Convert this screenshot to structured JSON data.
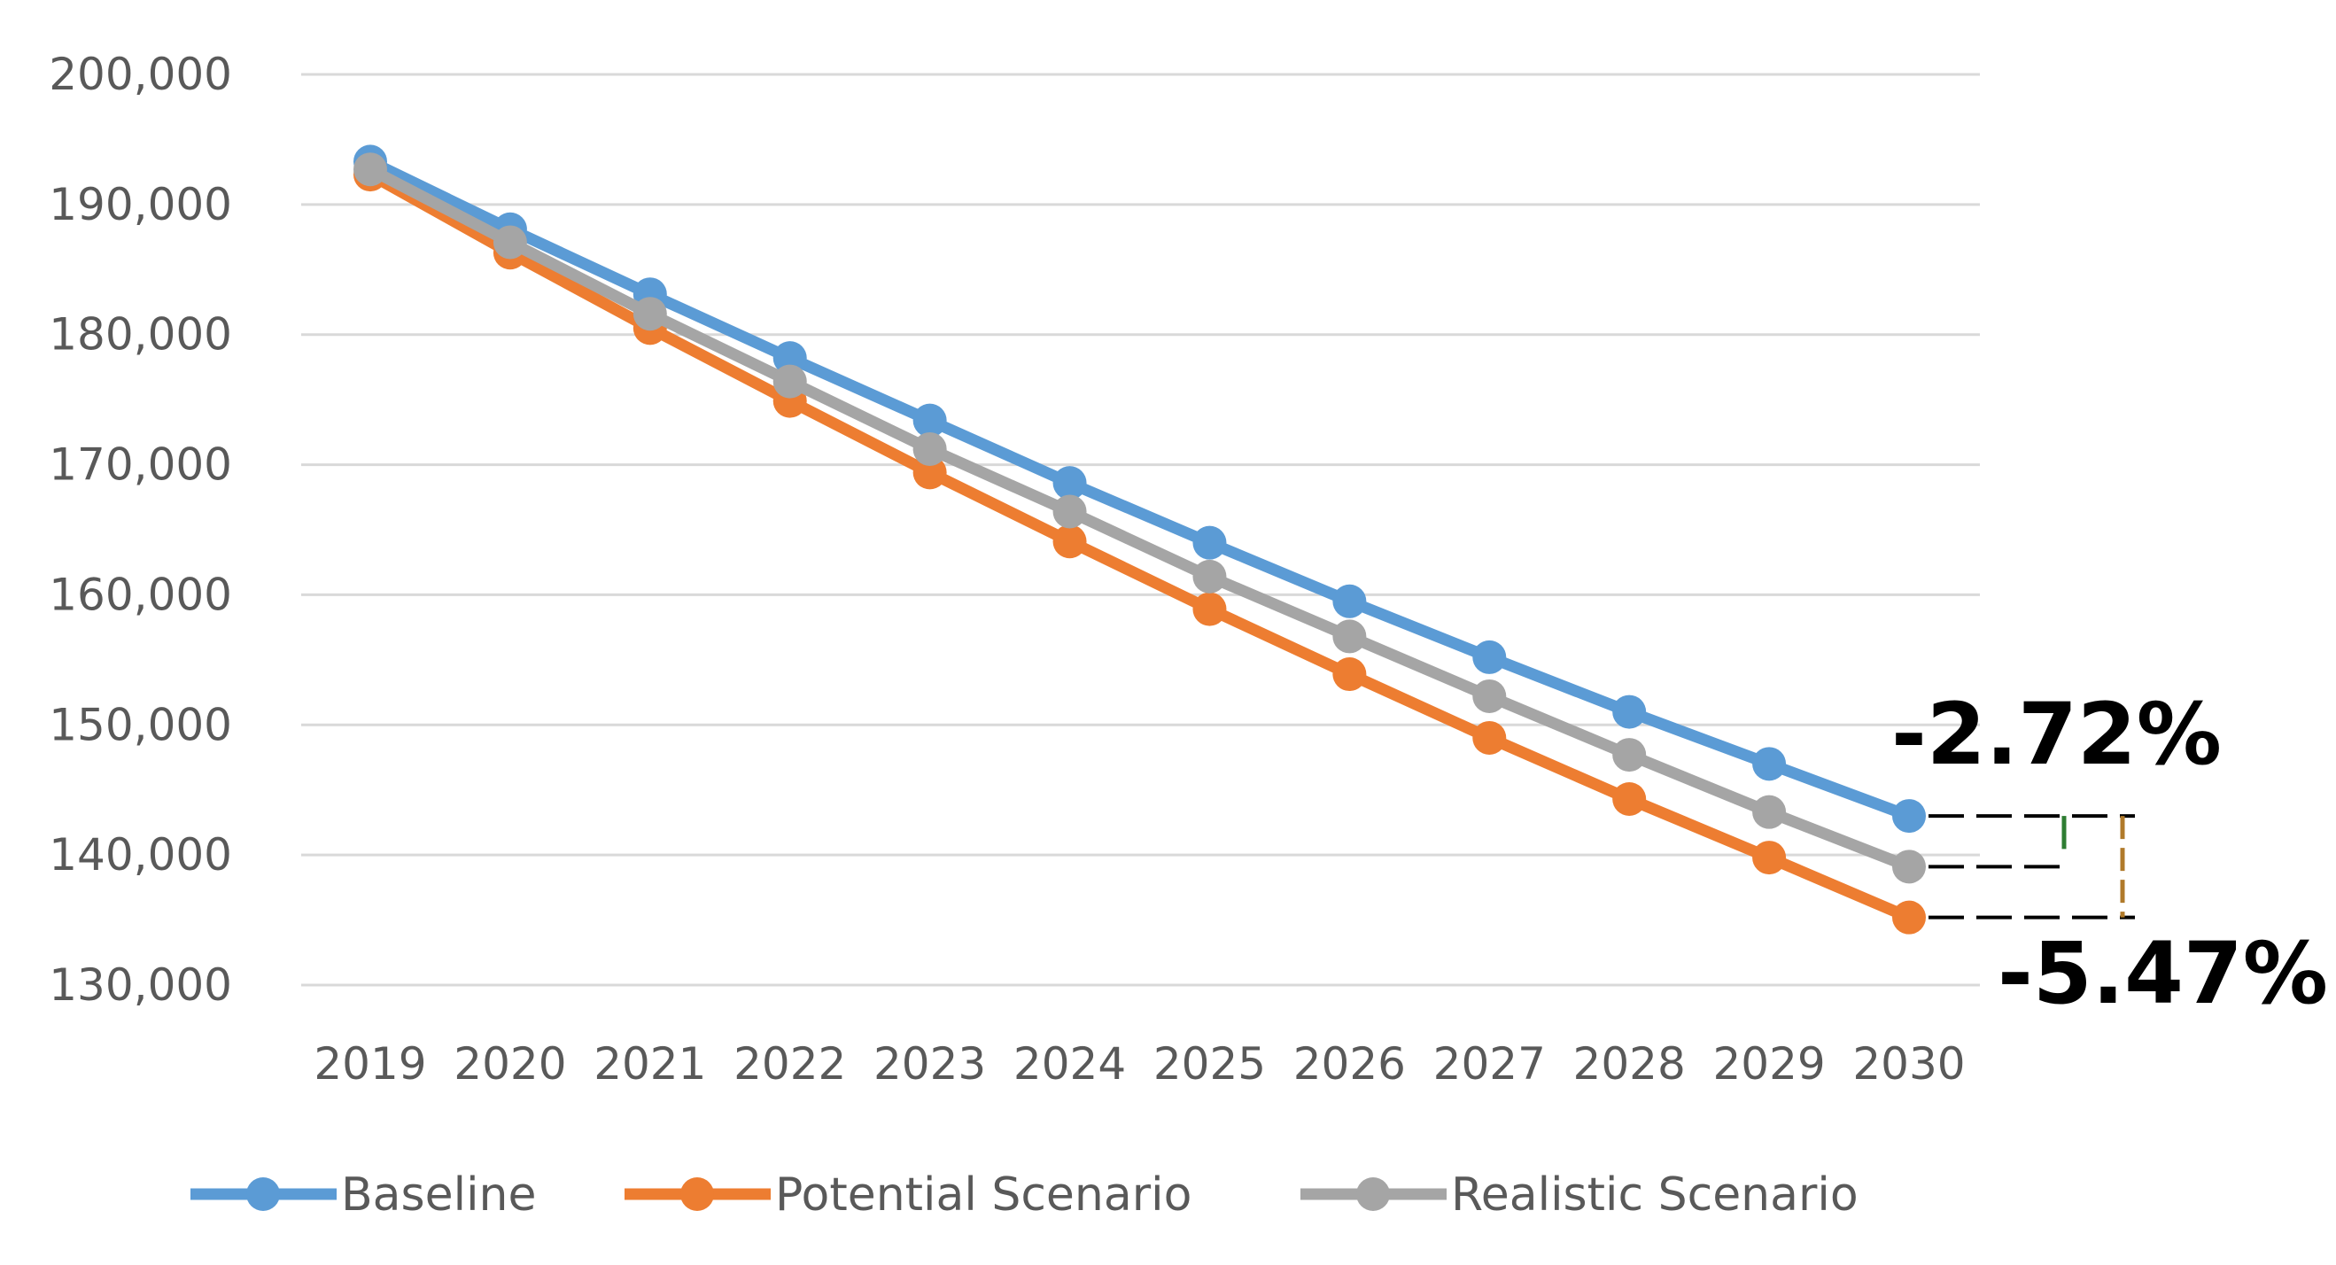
{
  "chart_data": {
    "type": "line",
    "title": "",
    "xlabel": "",
    "ylabel": "",
    "ylim": [
      130000,
      200000
    ],
    "y_ticks": [
      130000,
      140000,
      150000,
      160000,
      170000,
      180000,
      190000,
      200000
    ],
    "y_tick_labels": [
      "130,000",
      "140,000",
      "150,000",
      "160,000",
      "170,000",
      "180,000",
      "190,000",
      "200,000"
    ],
    "grid": true,
    "legend_position": "bottom",
    "categories": [
      "2019",
      "2020",
      "2021",
      "2022",
      "2023",
      "2024",
      "2025",
      "2026",
      "2027",
      "2028",
      "2029",
      "2030"
    ],
    "series": [
      {
        "name": "Baseline",
        "color": "#5B9BD5",
        "values": [
          193300,
          188100,
          183100,
          178200,
          173400,
          168600,
          164000,
          159500,
          155200,
          151000,
          147000,
          143000
        ]
      },
      {
        "name": "Potential Scenario",
        "color": "#ED7D31",
        "values": [
          192300,
          186300,
          180500,
          174900,
          169400,
          164100,
          158900,
          153900,
          149000,
          144300,
          139800,
          135200
        ]
      },
      {
        "name": "Realistic Scenario",
        "color": "#A5A5A5",
        "values": [
          192700,
          187100,
          181600,
          176400,
          171200,
          166400,
          161400,
          156800,
          152200,
          147700,
          143300,
          139100
        ]
      }
    ],
    "annotations": [
      {
        "text": "-2.72%",
        "between": [
          "Baseline",
          "Realistic Scenario"
        ],
        "bracket_color": "#2E7D32"
      },
      {
        "text": "-5.47%",
        "between": [
          "Baseline",
          "Potential Scenario"
        ],
        "bracket_color": "#B07A2A"
      }
    ]
  }
}
